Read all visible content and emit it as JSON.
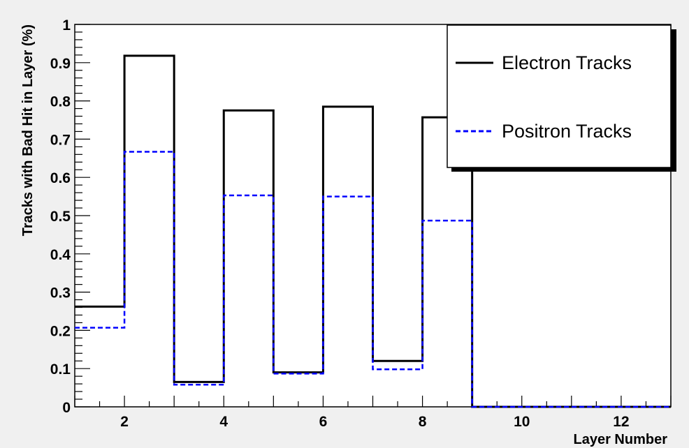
{
  "chart_data": {
    "type": "line",
    "xlabel": "Layer Number",
    "ylabel": "Tracks with Bad Hit in Layer (%)",
    "xlim": [
      1,
      13
    ],
    "ylim": [
      0,
      1
    ],
    "x_ticks": [
      2,
      4,
      6,
      8,
      10,
      12
    ],
    "y_ticks": [
      0,
      0.1,
      0.2,
      0.3,
      0.4,
      0.5,
      0.6,
      0.7,
      0.8,
      0.9,
      1
    ],
    "y_tick_labels": [
      "0",
      "0.1",
      "0.2",
      "0.3",
      "0.4",
      "0.5",
      "0.6",
      "0.7",
      "0.8",
      "0.9",
      "1"
    ],
    "bin_edges": [
      1,
      2,
      3,
      4,
      5,
      6,
      7,
      8,
      9,
      10,
      11,
      12,
      13
    ],
    "series": [
      {
        "name": "Electron Tracks",
        "style": "solid",
        "color": "#000000",
        "values": [
          0.262,
          0.918,
          0.065,
          0.775,
          0.09,
          0.785,
          0.12,
          0.757,
          0.0,
          0.0,
          0.0,
          0.0
        ]
      },
      {
        "name": "Positron Tracks",
        "style": "dashed",
        "color": "#0000ff",
        "values": [
          0.207,
          0.667,
          0.058,
          0.553,
          0.087,
          0.55,
          0.098,
          0.487,
          0.0,
          0.0,
          0.0,
          0.0
        ]
      }
    ],
    "legend_position": "top-right",
    "grid": false
  }
}
